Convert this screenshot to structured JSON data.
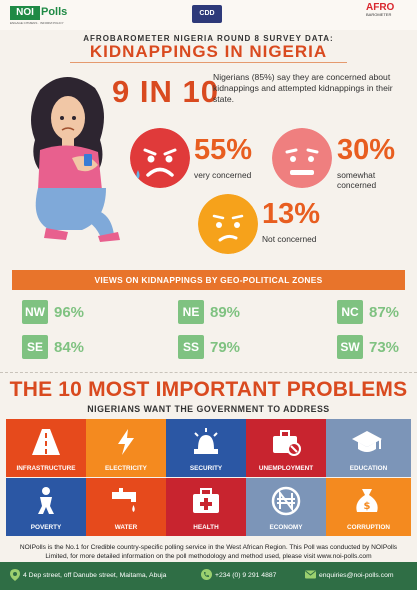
{
  "header": {
    "logo_left_main": "NOI",
    "logo_left_sub": "Polls",
    "logo_left_tagline": "ENGAGE CITIZENS · INFORM POLICY",
    "logo_center": "CDD",
    "logo_right_main": "AFRO",
    "logo_right_sub": "BAROMETER"
  },
  "survey": {
    "subtitle": "AFROBAROMETER NIGERIA ROUND 8 SURVEY DATA:",
    "title": "KIDNAPPINGS IN NIGERIA"
  },
  "headline": {
    "ratio": "9 IN 10",
    "text": "Nigerians (85%) say they are concerned about kidnappings and attempted kidnappings in their state."
  },
  "concern": [
    {
      "pct": "55%",
      "label": "very concerned",
      "color": "#e03a3a"
    },
    {
      "pct": "30%",
      "label": "somewhat concerned",
      "color": "#ef7f7f"
    },
    {
      "pct": "13%",
      "label": "Not concerned",
      "color": "#f6a21b"
    }
  ],
  "geo": {
    "banner": "VIEWS ON KIDNAPPINGS BY GEO-POLITICAL ZONES",
    "zones": [
      {
        "code": "NW",
        "pct": "96%"
      },
      {
        "code": "NE",
        "pct": "89%"
      },
      {
        "code": "NC",
        "pct": "87%"
      },
      {
        "code": "SE",
        "pct": "84%"
      },
      {
        "code": "SS",
        "pct": "79%"
      },
      {
        "code": "SW",
        "pct": "73%"
      }
    ]
  },
  "problems": {
    "heading": "THE 10 MOST IMPORTANT PROBLEMS",
    "subheading": "NIGERIANS WANT THE GOVERNMENT TO ADDRESS",
    "items": [
      {
        "label": "INFRASTRUCTURE",
        "icon": "road-icon",
        "color": "#e64a1c"
      },
      {
        "label": "ELECTRICITY",
        "icon": "lightning-icon",
        "color": "#f48a1f"
      },
      {
        "label": "SECURITY",
        "icon": "siren-icon",
        "color": "#2b57a4"
      },
      {
        "label": "UNEMPLOYMENT",
        "icon": "briefcase-icon",
        "color": "#c8242f"
      },
      {
        "label": "EDUCATION",
        "icon": "graduation-cap-icon",
        "color": "#7c95b8"
      },
      {
        "label": "POVERTY",
        "icon": "person-icon",
        "color": "#2b57a4"
      },
      {
        "label": "WATER",
        "icon": "tap-icon",
        "color": "#e64a1c"
      },
      {
        "label": "HEALTH",
        "icon": "medical-kit-icon",
        "color": "#c8242f"
      },
      {
        "label": "ECONOMY",
        "icon": "naira-icon",
        "color": "#7c95b8"
      },
      {
        "label": "CORRUPTION",
        "icon": "money-bag-icon",
        "color": "#f48a1f"
      }
    ]
  },
  "footer": {
    "note": "NOIPolls is the No.1 for Credible country-specific polling service in the West African Region. This Poll was conducted by NOIPolls Limited, for more detailed information on the poll methodology and method used, please visit www.noi-polls.com",
    "address": "4 Dep street, off Danube street, Maitama, Abuja",
    "phone": "+234 (0) 9 291 4887",
    "email": "enquiries@noi-polls.com"
  }
}
